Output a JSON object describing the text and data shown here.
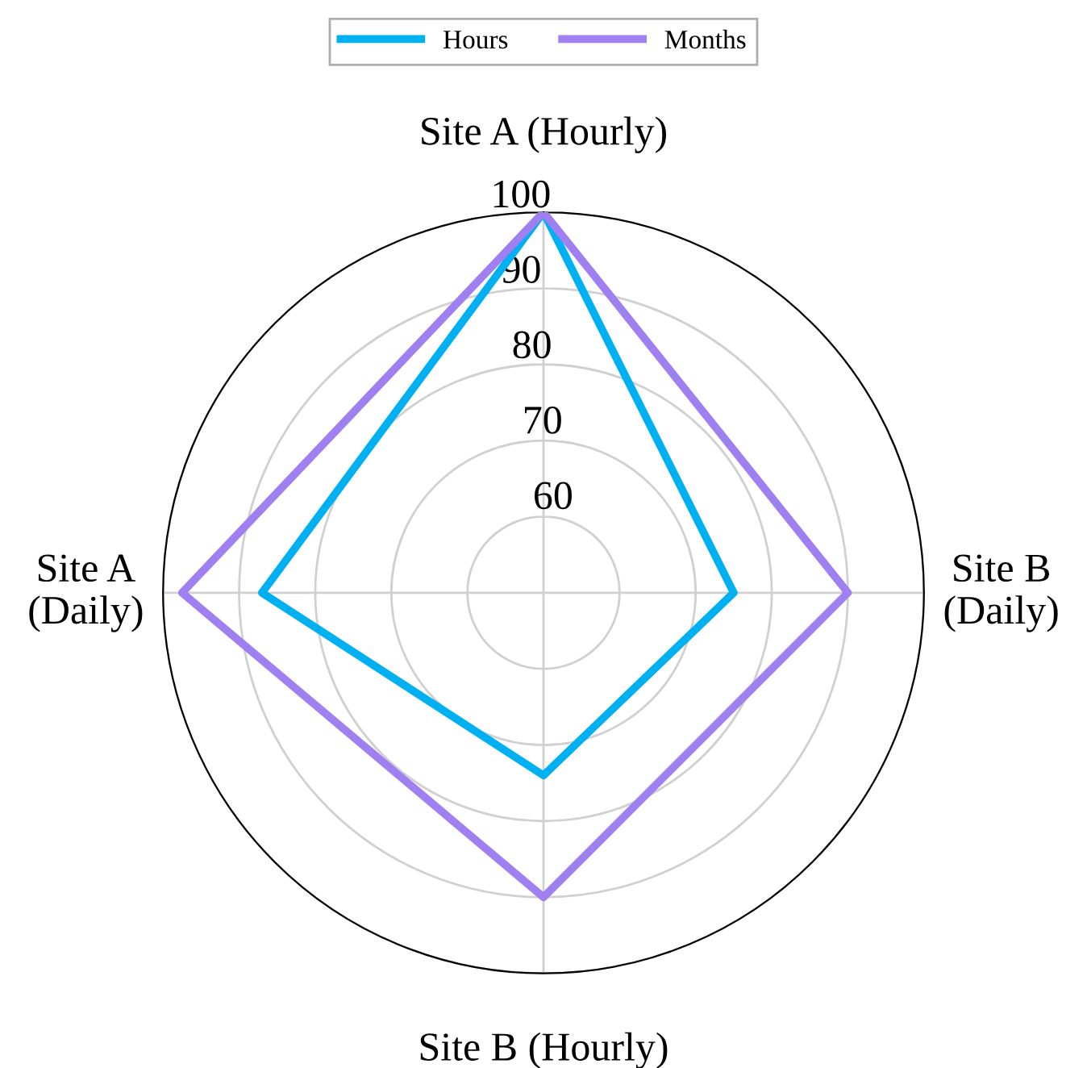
{
  "chart_data": {
    "type": "radar",
    "categories": [
      "Site A (Hourly)",
      "Site B\n(Daily)",
      "Site B (Hourly)",
      "Site A\n(Daily)"
    ],
    "series": [
      {
        "name": "Hours",
        "color": "#00b0f0",
        "values": [
          100,
          75,
          74,
          87
        ]
      },
      {
        "name": "Months",
        "color": "#a07ff0",
        "values": [
          100,
          90,
          90,
          97.5
        ]
      }
    ],
    "ylim": [
      50,
      100
    ],
    "yticks": [
      60,
      70,
      80,
      90,
      100
    ],
    "grid": true,
    "legend": "top",
    "marker": "none",
    "line_style": "solid"
  }
}
